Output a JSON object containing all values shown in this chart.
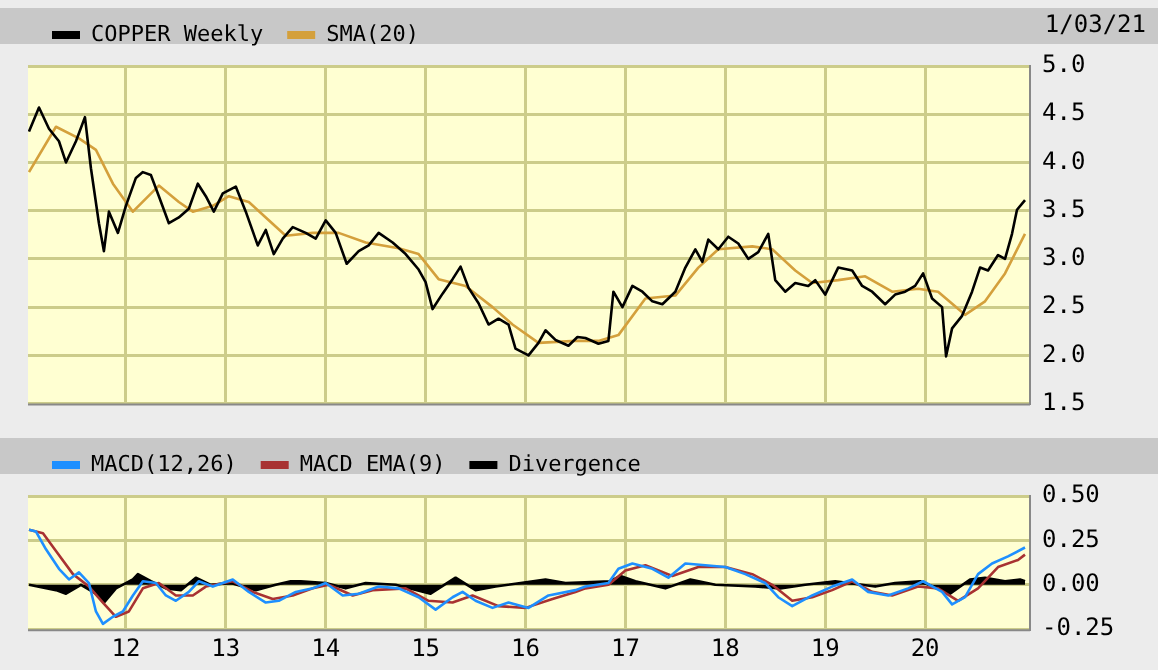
{
  "chart_data": [
    {
      "type": "line",
      "annotations": [
        "1/03/21"
      ],
      "legend": "top left",
      "grid": true,
      "tick_labels": "y",
      "marker": "none",
      "xlim": [
        11.02,
        21.05
      ],
      "xticks": [
        12,
        13,
        14,
        15,
        16,
        17,
        18,
        19,
        20
      ],
      "ylim": [
        1.5,
        5
      ],
      "yticks": [
        {
          "value": 1.5,
          "label": "1.5"
        },
        {
          "value": 2,
          "label": "2.0"
        },
        {
          "value": 2.5,
          "label": "2.5"
        },
        {
          "value": 3,
          "label": "3.0"
        },
        {
          "value": 3.5,
          "label": "3.5"
        },
        {
          "value": 4,
          "label": "4.0"
        },
        {
          "value": 4.5,
          "label": "4.5"
        },
        {
          "value": 5,
          "label": "5.0"
        }
      ],
      "series": [
        {
          "name": "COPPER Weekly",
          "color": "#000000",
          "x": [
            11.03,
            11.13,
            11.23,
            11.33,
            11.4,
            11.5,
            11.59,
            11.65,
            11.73,
            11.78,
            11.83,
            11.92,
            12.0,
            12.1,
            12.17,
            12.25,
            12.33,
            12.43,
            12.53,
            12.63,
            12.72,
            12.8,
            12.88,
            12.97,
            13.1,
            13.2,
            13.32,
            13.4,
            13.48,
            13.57,
            13.67,
            13.8,
            13.9,
            14.0,
            14.1,
            14.21,
            14.33,
            14.43,
            14.53,
            14.67,
            14.8,
            14.93,
            15.0,
            15.07,
            15.17,
            15.27,
            15.35,
            15.43,
            15.53,
            15.63,
            15.73,
            15.83,
            15.9,
            16.03,
            16.13,
            16.2,
            16.3,
            16.43,
            16.52,
            16.6,
            16.73,
            16.83,
            16.88,
            16.97,
            17.07,
            17.17,
            17.27,
            17.37,
            17.5,
            17.6,
            17.7,
            17.77,
            17.83,
            17.93,
            18.03,
            18.13,
            18.23,
            18.33,
            18.43,
            18.5,
            18.6,
            18.7,
            18.83,
            18.9,
            19.0,
            19.13,
            19.27,
            19.37,
            19.47,
            19.6,
            19.7,
            19.8,
            19.9,
            19.98,
            20.07,
            20.17,
            20.21,
            20.27,
            20.37,
            20.47,
            20.55,
            20.63,
            20.73,
            20.8,
            20.87,
            20.92,
            21.0
          ],
          "values": [
            4.32,
            4.57,
            4.35,
            4.22,
            4.0,
            4.22,
            4.47,
            3.94,
            3.37,
            3.08,
            3.49,
            3.27,
            3.55,
            3.84,
            3.9,
            3.87,
            3.65,
            3.37,
            3.43,
            3.52,
            3.78,
            3.65,
            3.49,
            3.68,
            3.75,
            3.49,
            3.14,
            3.3,
            3.05,
            3.21,
            3.33,
            3.27,
            3.21,
            3.4,
            3.27,
            2.95,
            3.08,
            3.14,
            3.27,
            3.17,
            3.05,
            2.89,
            2.76,
            2.48,
            2.64,
            2.79,
            2.92,
            2.7,
            2.54,
            2.32,
            2.38,
            2.32,
            2.07,
            2.0,
            2.13,
            2.26,
            2.16,
            2.1,
            2.19,
            2.18,
            2.12,
            2.15,
            2.66,
            2.5,
            2.72,
            2.66,
            2.56,
            2.53,
            2.66,
            2.91,
            3.1,
            2.97,
            3.2,
            3.1,
            3.23,
            3.16,
            3.0,
            3.07,
            3.26,
            2.78,
            2.66,
            2.75,
            2.72,
            2.78,
            2.63,
            2.91,
            2.88,
            2.72,
            2.66,
            2.53,
            2.63,
            2.66,
            2.72,
            2.85,
            2.59,
            2.5,
            1.99,
            2.28,
            2.41,
            2.66,
            2.91,
            2.88,
            3.04,
            3.0,
            3.26,
            3.51,
            3.61
          ]
        },
        {
          "name": "SMA(20)",
          "color": "#d4a03c",
          "x": [
            11.03,
            11.3,
            11.53,
            11.7,
            11.87,
            12.07,
            12.33,
            12.53,
            12.67,
            12.87,
            13.03,
            13.23,
            13.4,
            13.6,
            13.87,
            14.13,
            14.4,
            14.73,
            14.93,
            15.13,
            15.4,
            15.67,
            15.87,
            16.13,
            16.5,
            16.73,
            16.93,
            17.2,
            17.5,
            17.73,
            17.93,
            18.27,
            18.47,
            18.7,
            18.87,
            19.13,
            19.4,
            19.67,
            19.93,
            20.13,
            20.4,
            20.6,
            20.8,
            21.0
          ],
          "values": [
            3.9,
            4.37,
            4.25,
            4.13,
            3.78,
            3.49,
            3.76,
            3.59,
            3.49,
            3.55,
            3.65,
            3.59,
            3.43,
            3.24,
            3.27,
            3.27,
            3.17,
            3.11,
            3.05,
            2.79,
            2.72,
            2.5,
            2.32,
            2.13,
            2.15,
            2.15,
            2.21,
            2.59,
            2.62,
            2.91,
            3.1,
            3.13,
            3.1,
            2.88,
            2.75,
            2.78,
            2.82,
            2.66,
            2.69,
            2.66,
            2.42,
            2.56,
            2.85,
            3.26
          ]
        }
      ]
    },
    {
      "type": "line",
      "legend": "top left",
      "grid": true,
      "marker": "none",
      "xlim": [
        11.02,
        21.05
      ],
      "xticks": [
        12,
        13,
        14,
        15,
        16,
        17,
        18,
        19,
        20
      ],
      "ylim": [
        -0.25,
        0.5
      ],
      "yticks": [
        {
          "value": -0.25,
          "label": "-0.25"
        },
        {
          "value": 0,
          "label": "0.00"
        },
        {
          "value": 0.25,
          "label": "0.25"
        },
        {
          "value": 0.5,
          "label": "0.50"
        }
      ],
      "series": [
        {
          "name": "MACD(12,26)",
          "color": "#1e8fff",
          "x": [
            11.03,
            11.1,
            11.2,
            11.33,
            11.43,
            11.53,
            11.63,
            11.7,
            11.77,
            11.87,
            11.97,
            12.07,
            12.17,
            12.3,
            12.4,
            12.5,
            12.63,
            12.73,
            12.87,
            13.07,
            13.23,
            13.4,
            13.53,
            13.7,
            13.87,
            14.0,
            14.17,
            14.33,
            14.53,
            14.73,
            14.93,
            15.1,
            15.27,
            15.37,
            15.5,
            15.67,
            15.83,
            16.03,
            16.23,
            16.5,
            16.6,
            16.83,
            16.93,
            17.07,
            17.27,
            17.43,
            17.6,
            17.8,
            18.0,
            18.2,
            18.4,
            18.53,
            18.67,
            18.87,
            19.07,
            19.27,
            19.43,
            19.63,
            19.83,
            19.98,
            20.17,
            20.27,
            20.4,
            20.53,
            20.67,
            20.83,
            21.0
          ],
          "values": [
            0.31,
            0.3,
            0.2,
            0.09,
            0.03,
            0.07,
            0.01,
            -0.15,
            -0.22,
            -0.18,
            -0.15,
            -0.06,
            0.02,
            0.01,
            -0.06,
            -0.09,
            -0.04,
            0.02,
            -0.01,
            0.03,
            -0.04,
            -0.1,
            -0.09,
            -0.04,
            -0.02,
            0.01,
            -0.06,
            -0.05,
            -0.01,
            -0.02,
            -0.07,
            -0.14,
            -0.07,
            -0.04,
            -0.09,
            -0.13,
            -0.1,
            -0.13,
            -0.06,
            -0.03,
            -0.01,
            0.01,
            0.09,
            0.12,
            0.09,
            0.04,
            0.12,
            0.11,
            0.1,
            0.06,
            0.01,
            -0.07,
            -0.12,
            -0.06,
            -0.01,
            0.03,
            -0.04,
            -0.06,
            -0.02,
            0.02,
            -0.04,
            -0.11,
            -0.07,
            0.06,
            0.12,
            0.16,
            0.21
          ]
        },
        {
          "name": "MACD EMA(9)",
          "color": "#a83232",
          "x": [
            11.03,
            11.17,
            11.3,
            11.47,
            11.63,
            11.77,
            11.9,
            12.03,
            12.17,
            12.33,
            12.5,
            12.67,
            12.8,
            13.07,
            13.27,
            13.47,
            13.67,
            13.87,
            14.03,
            14.27,
            14.47,
            14.8,
            15.03,
            15.27,
            15.47,
            15.73,
            16.0,
            16.27,
            16.5,
            16.6,
            16.83,
            17.0,
            17.2,
            17.47,
            17.73,
            18.0,
            18.27,
            18.47,
            18.67,
            18.87,
            19.07,
            19.27,
            19.47,
            19.67,
            19.93,
            20.13,
            20.33,
            20.53,
            20.73,
            20.93,
            21.0
          ],
          "values": [
            0.31,
            0.29,
            0.19,
            0.06,
            -0.01,
            -0.1,
            -0.18,
            -0.15,
            -0.02,
            0.01,
            -0.06,
            -0.06,
            -0.01,
            0.02,
            -0.04,
            -0.08,
            -0.06,
            -0.02,
            0.0,
            -0.06,
            -0.03,
            -0.02,
            -0.09,
            -0.1,
            -0.06,
            -0.12,
            -0.13,
            -0.08,
            -0.04,
            -0.02,
            0.0,
            0.08,
            0.11,
            0.05,
            0.1,
            0.1,
            0.06,
            0.0,
            -0.09,
            -0.07,
            -0.03,
            0.02,
            -0.04,
            -0.06,
            -0.01,
            -0.02,
            -0.09,
            -0.02,
            0.1,
            0.14,
            0.17
          ]
        },
        {
          "name": "Divergence",
          "type": "area",
          "color": "#000000",
          "x": [
            11.03,
            11.3,
            11.4,
            11.55,
            11.7,
            11.78,
            11.9,
            12.07,
            12.12,
            12.25,
            12.4,
            12.55,
            12.7,
            12.85,
            13.05,
            13.3,
            13.5,
            13.65,
            13.75,
            14.0,
            14.2,
            14.4,
            14.7,
            15.05,
            15.3,
            15.5,
            15.7,
            16.2,
            16.4,
            16.85,
            16.95,
            17.1,
            17.4,
            17.65,
            17.9,
            18.3,
            18.55,
            18.8,
            19.1,
            19.5,
            19.7,
            19.95,
            20.25,
            20.45,
            20.6,
            20.8,
            20.95,
            21.0
          ],
          "values": [
            0.0,
            -0.03,
            -0.05,
            0.0,
            -0.05,
            -0.1,
            -0.02,
            0.03,
            0.06,
            0.02,
            -0.02,
            -0.03,
            0.04,
            0.0,
            0.01,
            -0.03,
            0.0,
            0.02,
            0.02,
            0.01,
            -0.02,
            0.01,
            0.0,
            -0.05,
            0.04,
            -0.03,
            -0.01,
            0.03,
            0.01,
            0.02,
            0.05,
            0.02,
            -0.02,
            0.03,
            0.0,
            -0.01,
            -0.02,
            0.0,
            0.02,
            -0.01,
            0.01,
            0.02,
            -0.05,
            0.03,
            0.04,
            0.02,
            0.03,
            0.02
          ]
        }
      ]
    }
  ]
}
